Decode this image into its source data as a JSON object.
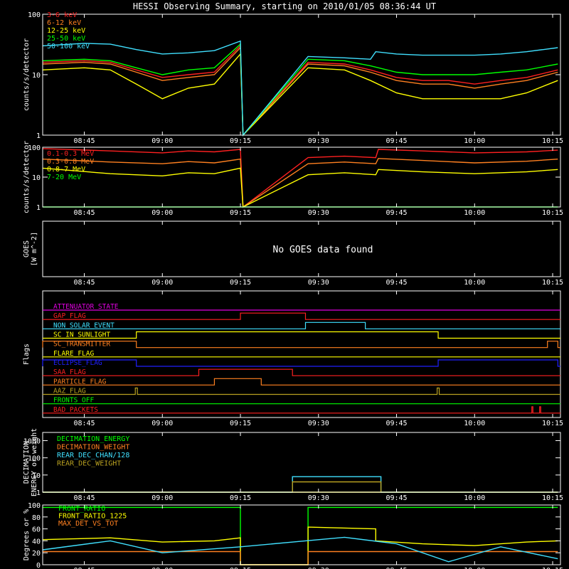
{
  "title": "HESSI Observing Summary, starting on 2010/01/05 08:36:44 UT",
  "time_ticks": [
    "08:45",
    "09:00",
    "09:15",
    "09:30",
    "09:45",
    "10:00",
    "10:15"
  ],
  "colors": {
    "bg": "#000000",
    "axis": "#ffffff",
    "red": "#ff2020",
    "orange": "#ff8020",
    "yellow": "#ffff00",
    "green": "#00ff00",
    "cyan": "#40e0ff",
    "magenta": "#e000e0",
    "blue": "#2020ff",
    "olive": "#b8a020",
    "darkorange": "#d06020"
  },
  "chart_data": [
    {
      "type": "line",
      "name": "panel-xray",
      "ylabel": "counts/s/detector",
      "yscale": "log",
      "ylim": [
        1,
        100
      ],
      "y_tick_labels": [
        "1",
        "10",
        "100"
      ],
      "series": [
        {
          "name": "3-6 keV",
          "color": "#ff2020",
          "x": [
            "08:37",
            "08:45",
            "08:50",
            "08:55",
            "09:00",
            "09:05",
            "09:10",
            "09:15",
            "09:15.5",
            "09:28",
            "09:35",
            "09:40",
            "09:45",
            "09:50",
            "09:55",
            "10:00",
            "10:05",
            "10:10",
            "10:16"
          ],
          "values": [
            16,
            17,
            16,
            12,
            9,
            10,
            11,
            30,
            1,
            16,
            15,
            12,
            9,
            8,
            8,
            7,
            8,
            9,
            12
          ]
        },
        {
          "name": "6-12 keV",
          "color": "#ff8020",
          "x": [
            "08:37",
            "08:45",
            "08:50",
            "08:55",
            "09:00",
            "09:05",
            "09:10",
            "09:15",
            "09:15.5",
            "09:28",
            "09:35",
            "09:40",
            "09:45",
            "09:50",
            "09:55",
            "10:00",
            "10:05",
            "10:10",
            "10:16"
          ],
          "values": [
            15,
            16,
            15,
            11,
            8,
            9,
            10,
            28,
            1,
            15,
            14,
            11,
            8,
            7,
            7,
            6,
            7,
            8,
            11
          ]
        },
        {
          "name": "12-25 keV",
          "color": "#ffff00",
          "x": [
            "08:37",
            "08:45",
            "08:50",
            "08:55",
            "09:00",
            "09:05",
            "09:10",
            "09:15",
            "09:15.5",
            "09:28",
            "09:35",
            "09:40",
            "09:45",
            "09:50",
            "09:55",
            "10:00",
            "10:05",
            "10:10",
            "10:16"
          ],
          "values": [
            12,
            13,
            12,
            7,
            4,
            6,
            7,
            22,
            1,
            13,
            12,
            8,
            5,
            4,
            4,
            4,
            4,
            5,
            8
          ]
        },
        {
          "name": "25-50 keV",
          "color": "#00ff00",
          "x": [
            "08:37",
            "08:45",
            "08:50",
            "08:55",
            "09:00",
            "09:05",
            "09:10",
            "09:15",
            "09:15.5",
            "09:28",
            "09:35",
            "09:40",
            "09:45",
            "09:50",
            "09:55",
            "10:00",
            "10:05",
            "10:10",
            "10:16"
          ],
          "values": [
            17,
            18,
            17,
            13,
            10,
            12,
            13,
            32,
            1,
            18,
            17,
            14,
            11,
            10,
            10,
            10,
            11,
            12,
            15
          ]
        },
        {
          "name": "50-100 keV",
          "color": "#40e0ff",
          "x": [
            "08:37",
            "08:45",
            "08:50",
            "08:55",
            "09:00",
            "09:05",
            "09:10",
            "09:15",
            "09:15.5",
            "09:28",
            "09:35",
            "09:40",
            "09:41",
            "09:45",
            "09:50",
            "09:55",
            "10:00",
            "10:05",
            "10:10",
            "10:16"
          ],
          "values": [
            30,
            33,
            32,
            26,
            22,
            23,
            25,
            36,
            1,
            20,
            19,
            18,
            24,
            22,
            21,
            21,
            21,
            22,
            24,
            28
          ]
        }
      ]
    },
    {
      "type": "line",
      "name": "panel-gamma",
      "ylabel": "counts/s/detector",
      "yscale": "log",
      "ylim": [
        1,
        100
      ],
      "y_tick_labels": [
        "1",
        "10",
        "100"
      ],
      "series": [
        {
          "name": "0.1-0.3 MeV",
          "color": "#ff2020",
          "x": [
            "08:37",
            "08:50",
            "09:00",
            "09:05",
            "09:10",
            "09:15",
            "09:15.5",
            "09:28",
            "09:35",
            "09:41",
            "09:41.5",
            "09:50",
            "10:00",
            "10:10",
            "10:16"
          ],
          "values": [
            90,
            75,
            65,
            75,
            70,
            85,
            1,
            45,
            50,
            45,
            85,
            75,
            65,
            70,
            80
          ]
        },
        {
          "name": "0.3-0.8 MeV",
          "color": "#ff8020",
          "x": [
            "08:37",
            "08:50",
            "09:00",
            "09:05",
            "09:10",
            "09:15",
            "09:15.5",
            "09:28",
            "09:35",
            "09:41",
            "09:41.5",
            "09:50",
            "10:00",
            "10:10",
            "10:16"
          ],
          "values": [
            40,
            32,
            28,
            33,
            30,
            40,
            1,
            28,
            32,
            28,
            42,
            36,
            30,
            34,
            40
          ]
        },
        {
          "name": "0.8-7 MeV",
          "color": "#ffff00",
          "x": [
            "08:37",
            "08:50",
            "09:00",
            "09:05",
            "09:10",
            "09:15",
            "09:15.5",
            "09:28",
            "09:35",
            "09:41",
            "09:41.5",
            "09:50",
            "10:00",
            "10:10",
            "10:16"
          ],
          "values": [
            20,
            13,
            11,
            14,
            13,
            20,
            1,
            12,
            14,
            12,
            18,
            15,
            13,
            15,
            18
          ]
        },
        {
          "name": "7-20 MeV",
          "color": "#00ff00",
          "x": [
            "08:37",
            "10:16"
          ],
          "values": [
            1,
            1
          ]
        }
      ]
    },
    {
      "type": "line",
      "name": "panel-goes",
      "ylabel": "GOES",
      "ylabel2": "[W m^-2]",
      "message": "No GOES data found",
      "series": []
    },
    {
      "type": "line",
      "name": "panel-flags",
      "ylabel": "Flags",
      "flags": [
        {
          "name": "ATTENUATOR_STATE",
          "color": "#e000e0",
          "on": []
        },
        {
          "name": "GAP_FLAG",
          "color": "#ff2020",
          "on": [
            [
              "09:15",
              "09:27.5"
            ]
          ]
        },
        {
          "name": "NON_SOLAR_EVENT",
          "color": "#40e0ff",
          "on": [
            [
              "09:27.5",
              "09:39"
            ]
          ]
        },
        {
          "name": "SC_IN_SUNLIGHT",
          "color": "#ffff00",
          "on": [
            [
              "08:55",
              "09:53"
            ]
          ]
        },
        {
          "name": "SC_TRANSMITTER",
          "color": "#ff8020",
          "on": [
            [
              "08:37",
              "08:55"
            ],
            [
              "10:14",
              "10:16"
            ]
          ]
        },
        {
          "name": "FLARE_FLAG",
          "color": "#ffff00",
          "on": []
        },
        {
          "name": "ECLIPSE_FLAG",
          "color": "#2020ff",
          "on": [
            [
              "08:37",
              "08:55"
            ],
            [
              "09:53",
              "10:16"
            ]
          ]
        },
        {
          "name": "SAA_FLAG",
          "color": "#ff2020",
          "on": [
            [
              "09:07",
              "09:25"
            ]
          ]
        },
        {
          "name": "PARTICLE_FLAG",
          "color": "#ff8020",
          "on": [
            [
              "09:10",
              "09:19"
            ]
          ]
        },
        {
          "name": "AAZ_FLAG",
          "color": "#b8a020",
          "on": [
            [
              "08:54.8",
              "08:55.2"
            ],
            [
              "09:52.8",
              "09:53.2"
            ]
          ]
        },
        {
          "name": "FRONTS_OFF",
          "color": "#00ff00",
          "on": []
        },
        {
          "name": "BAD_PACKETS",
          "color": "#ff2020",
          "on": [
            [
              "10:11",
              "10:11.2"
            ],
            [
              "10:12.5",
              "10:12.7"
            ]
          ]
        }
      ]
    },
    {
      "type": "line",
      "name": "panel-decimation",
      "ylabel": "DECIMATION",
      "ylabel2": "ENERGY or weight",
      "yscale": "log",
      "ylim": [
        1,
        3000
      ],
      "y_tick_labels": [
        "1",
        "10",
        "100",
        "1000"
      ],
      "series": [
        {
          "name": "DECIMATION_ENERGY",
          "color": "#00ff00",
          "x": [
            "08:37",
            "10:16"
          ],
          "values": [
            1,
            1
          ]
        },
        {
          "name": "DECIMATION_WEIGHT",
          "color": "#ff8020",
          "x": [
            "08:37",
            "10:16"
          ],
          "values": [
            1,
            1
          ]
        },
        {
          "name": "REAR_DEC_CHAN/128",
          "color": "#40e0ff",
          "x": [
            "08:37",
            "09:25",
            "09:25",
            "09:42",
            "09:42",
            "10:16"
          ],
          "values": [
            1,
            1,
            8,
            8,
            1,
            1
          ]
        },
        {
          "name": "REAR_DEC_WEIGHT",
          "color": "#b8a020",
          "x": [
            "08:37",
            "09:25",
            "09:25",
            "09:42",
            "09:42",
            "10:16"
          ],
          "values": [
            1,
            1,
            4,
            4,
            1,
            1
          ]
        }
      ]
    },
    {
      "type": "line",
      "name": "panel-ratio",
      "ylabel": "Degrees or %",
      "ylim": [
        0,
        100
      ],
      "y_tick_labels": [
        "0",
        "20",
        "40",
        "60",
        "80",
        "100"
      ],
      "series": [
        {
          "name": "FRONT_RATIO",
          "color": "#00ff00",
          "x": [
            "08:37",
            "09:15",
            "09:15",
            "09:28",
            "09:28",
            "10:16"
          ],
          "values": [
            96,
            96,
            0,
            0,
            96,
            96
          ]
        },
        {
          "name": "FRONT_RATIO_1225",
          "color": "#ffff00",
          "x": [
            "08:37",
            "08:50",
            "09:00",
            "09:10",
            "09:15",
            "09:15",
            "09:28",
            "09:28",
            "09:41",
            "09:41",
            "09:50",
            "10:00",
            "10:10",
            "10:16"
          ],
          "values": [
            42,
            45,
            38,
            40,
            45,
            0,
            0,
            63,
            60,
            40,
            35,
            32,
            38,
            40
          ]
        },
        {
          "name": "MAX_DET_VS_TOT",
          "color": "#ff8020",
          "x": [
            "08:37",
            "09:15",
            "09:15",
            "09:28",
            "09:28",
            "10:16"
          ],
          "values": [
            22,
            22,
            0,
            0,
            22,
            22
          ]
        },
        {
          "name": "",
          "color": "#40e0ff",
          "x": [
            "08:37",
            "08:50",
            "09:00",
            "09:15",
            "09:35",
            "09:45",
            "09:55",
            "10:05",
            "10:16"
          ],
          "values": [
            25,
            40,
            20,
            30,
            46,
            35,
            5,
            30,
            10
          ]
        }
      ]
    }
  ]
}
